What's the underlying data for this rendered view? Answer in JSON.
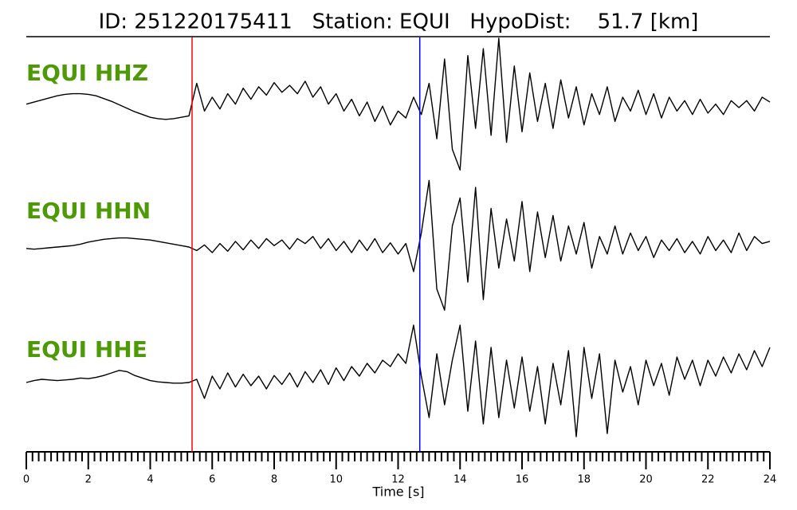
{
  "chart_data": {
    "type": "line",
    "title": "ID: 251220175411   Station: EQUI   HypoDist:    51.7 [km]",
    "xlabel": "Time [s]",
    "xlim": [
      0,
      24
    ],
    "xticks": [
      0,
      2,
      4,
      6,
      8,
      10,
      12,
      14,
      16,
      18,
      20,
      22,
      24
    ],
    "xminor_ticks": [
      0.2,
      0.4,
      0.6,
      0.8,
      1,
      1.2,
      1.4,
      1.6,
      1.8,
      2.2,
      2.4,
      2.6,
      2.8,
      3,
      3.2,
      3.4,
      3.6,
      3.8,
      4.2,
      4.4,
      4.6,
      4.8,
      5,
      5.2,
      5.4,
      5.6,
      5.8,
      6.2,
      6.4,
      6.6,
      6.8,
      7,
      7.2,
      7.4,
      7.6,
      7.8,
      8.2,
      8.4,
      8.6,
      8.8,
      9,
      9.2,
      9.4,
      9.6,
      9.8,
      10.2,
      10.4,
      10.6,
      10.8,
      11,
      11.2,
      11.4,
      11.6,
      11.8,
      12.2,
      12.4,
      12.6,
      12.8,
      13,
      13.2,
      13.4,
      13.6,
      13.8,
      14.2,
      14.4,
      14.6,
      14.8,
      15,
      15.2,
      15.4,
      15.6,
      15.8,
      16.2,
      16.4,
      16.6,
      16.8,
      17,
      17.2,
      17.4,
      17.6,
      17.8,
      18.2,
      18.4,
      18.6,
      18.8,
      19,
      19.2,
      19.4,
      19.6,
      19.8,
      20.2,
      20.4,
      20.6,
      20.8,
      21,
      21.2,
      21.4,
      21.6,
      21.8,
      22.2,
      22.4,
      22.6,
      22.8,
      23,
      23.2,
      23.4,
      23.6,
      23.8
    ],
    "picks": [
      {
        "time": 5.35,
        "color": "#ff0000"
      },
      {
        "time": 12.7,
        "color": "#0000ff"
      }
    ],
    "label_color": "#4d9a06",
    "ylim": [
      -1,
      1
    ],
    "x": [
      0,
      0.25,
      0.5,
      0.75,
      1,
      1.25,
      1.5,
      1.75,
      2,
      2.25,
      2.5,
      2.75,
      3,
      3.25,
      3.5,
      3.75,
      4,
      4.25,
      4.5,
      4.75,
      5,
      5.25,
      5.5,
      5.75,
      6,
      6.25,
      6.5,
      6.75,
      7,
      7.25,
      7.5,
      7.75,
      8,
      8.25,
      8.5,
      8.75,
      9,
      9.25,
      9.5,
      9.75,
      10,
      10.25,
      10.5,
      10.75,
      11,
      11.25,
      11.5,
      11.75,
      12,
      12.25,
      12.5,
      12.75,
      13,
      13.25,
      13.5,
      13.75,
      14,
      14.25,
      14.5,
      14.75,
      15,
      15.25,
      15.5,
      15.75,
      16,
      16.25,
      16.5,
      16.75,
      17,
      17.25,
      17.5,
      17.75,
      18,
      18.25,
      18.5,
      18.75,
      19,
      19.25,
      19.5,
      19.75,
      20,
      20.25,
      20.5,
      20.75,
      21,
      21.25,
      21.5,
      21.75,
      22,
      22.25,
      22.5,
      22.75,
      23,
      23.25,
      23.5,
      23.75,
      24
    ],
    "series": [
      {
        "name": "EQUI HHZ",
        "color": "#000000",
        "values": [
          0.05,
          0.08,
          0.11,
          0.14,
          0.17,
          0.19,
          0.2,
          0.2,
          0.19,
          0.17,
          0.13,
          0.09,
          0.04,
          -0.01,
          -0.06,
          -0.1,
          -0.14,
          -0.16,
          -0.17,
          -0.16,
          -0.14,
          -0.12,
          0.35,
          -0.05,
          0.15,
          -0.02,
          0.2,
          0.05,
          0.28,
          0.12,
          0.3,
          0.18,
          0.36,
          0.22,
          0.32,
          0.2,
          0.38,
          0.15,
          0.3,
          0.05,
          0.2,
          -0.05,
          0.12,
          -0.12,
          0.08,
          -0.2,
          0.02,
          -0.25,
          -0.05,
          -0.15,
          0.15,
          -0.1,
          0.35,
          -0.45,
          0.7,
          -0.6,
          -0.9,
          0.75,
          -0.3,
          0.85,
          -0.4,
          1.0,
          -0.5,
          0.6,
          -0.35,
          0.5,
          -0.2,
          0.35,
          -0.3,
          0.4,
          -0.15,
          0.3,
          -0.25,
          0.2,
          -0.1,
          0.3,
          -0.2,
          0.15,
          -0.05,
          0.25,
          -0.1,
          0.2,
          -0.15,
          0.15,
          -0.05,
          0.1,
          -0.1,
          0.12,
          -0.08,
          0.05,
          -0.1,
          0.1,
          0.0,
          0.1,
          -0.05,
          0.15,
          0.08
        ]
      },
      {
        "name": "EQUI HHN",
        "color": "#000000",
        "values": [
          -0.02,
          -0.03,
          -0.02,
          -0.01,
          0.0,
          0.01,
          0.02,
          0.04,
          0.07,
          0.09,
          0.11,
          0.12,
          0.13,
          0.13,
          0.12,
          0.11,
          0.1,
          0.08,
          0.06,
          0.04,
          0.02,
          0.0,
          -0.05,
          0.03,
          -0.08,
          0.05,
          -0.06,
          0.08,
          -0.04,
          0.1,
          -0.02,
          0.12,
          0.02,
          0.1,
          -0.03,
          0.12,
          0.05,
          0.15,
          -0.02,
          0.12,
          -0.05,
          0.08,
          -0.08,
          0.1,
          -0.05,
          0.12,
          -0.08,
          0.06,
          -0.1,
          0.05,
          -0.35,
          0.2,
          0.95,
          -0.6,
          -0.9,
          0.3,
          0.7,
          -0.5,
          0.85,
          -0.75,
          0.55,
          -0.3,
          0.4,
          -0.2,
          0.65,
          -0.35,
          0.5,
          -0.15,
          0.45,
          -0.2,
          0.3,
          -0.1,
          0.35,
          -0.3,
          0.15,
          -0.1,
          0.3,
          -0.1,
          0.2,
          -0.05,
          0.15,
          -0.15,
          0.1,
          -0.05,
          0.12,
          -0.08,
          0.08,
          -0.1,
          0.15,
          -0.05,
          0.1,
          -0.08,
          0.2,
          -0.05,
          0.15,
          0.05,
          0.08
        ]
      },
      {
        "name": "EQUI HHE",
        "color": "#000000",
        "values": [
          -0.05,
          -0.02,
          0.0,
          -0.01,
          -0.02,
          -0.01,
          0.0,
          0.02,
          0.01,
          0.03,
          0.06,
          0.1,
          0.14,
          0.12,
          0.06,
          0.02,
          -0.02,
          -0.04,
          -0.05,
          -0.06,
          -0.06,
          -0.05,
          0.0,
          -0.3,
          0.05,
          -0.15,
          0.1,
          -0.12,
          0.08,
          -0.1,
          0.05,
          -0.15,
          0.06,
          -0.08,
          0.1,
          -0.12,
          0.12,
          -0.05,
          0.15,
          -0.08,
          0.18,
          -0.02,
          0.2,
          0.05,
          0.25,
          0.1,
          0.3,
          0.2,
          0.4,
          0.25,
          0.85,
          0.05,
          -0.6,
          0.4,
          -0.4,
          0.3,
          0.85,
          -0.5,
          0.6,
          -0.7,
          0.5,
          -0.6,
          0.3,
          -0.45,
          0.35,
          -0.5,
          0.2,
          -0.7,
          0.25,
          -0.4,
          0.45,
          -0.9,
          0.5,
          -0.3,
          0.4,
          -0.85,
          0.3,
          -0.2,
          0.2,
          -0.4,
          0.3,
          -0.1,
          0.25,
          -0.25,
          0.35,
          0.0,
          0.3,
          -0.1,
          0.3,
          0.05,
          0.35,
          0.1,
          0.4,
          0.15,
          0.45,
          0.2,
          0.5
        ]
      }
    ]
  }
}
